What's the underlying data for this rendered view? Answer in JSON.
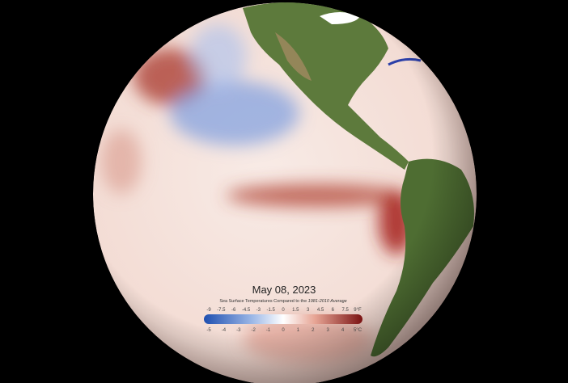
{
  "date": "May 08, 2023",
  "legend": {
    "title_prefix": "Sea Surface Temperatures Compared to the ",
    "title_emphasis": "1981-2010 Average",
    "fahrenheit_ticks": [
      "-9",
      "-7.5",
      "-6",
      "-4.5",
      "-3",
      "-1.5",
      "0",
      "1.5",
      "3",
      "4.5",
      "6",
      "7.5",
      "9°F"
    ],
    "celsius_ticks": [
      "-5",
      "-4",
      "-3",
      "-2",
      "-1",
      "0",
      "1",
      "2",
      "3",
      "4",
      "5°C"
    ]
  }
}
